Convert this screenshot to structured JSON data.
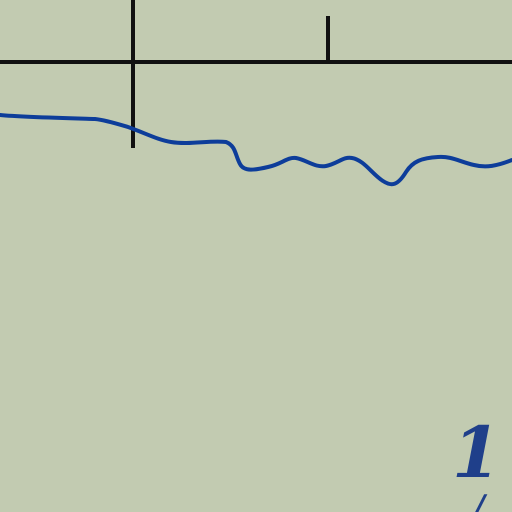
{
  "map": {
    "background_color": "#c2cbb1",
    "boundary_color": "#111111",
    "river_color": "#0d3d9a",
    "label_color": "#1f3f8a",
    "labels": {
      "big": "1(",
      "small": "/"
    }
  }
}
